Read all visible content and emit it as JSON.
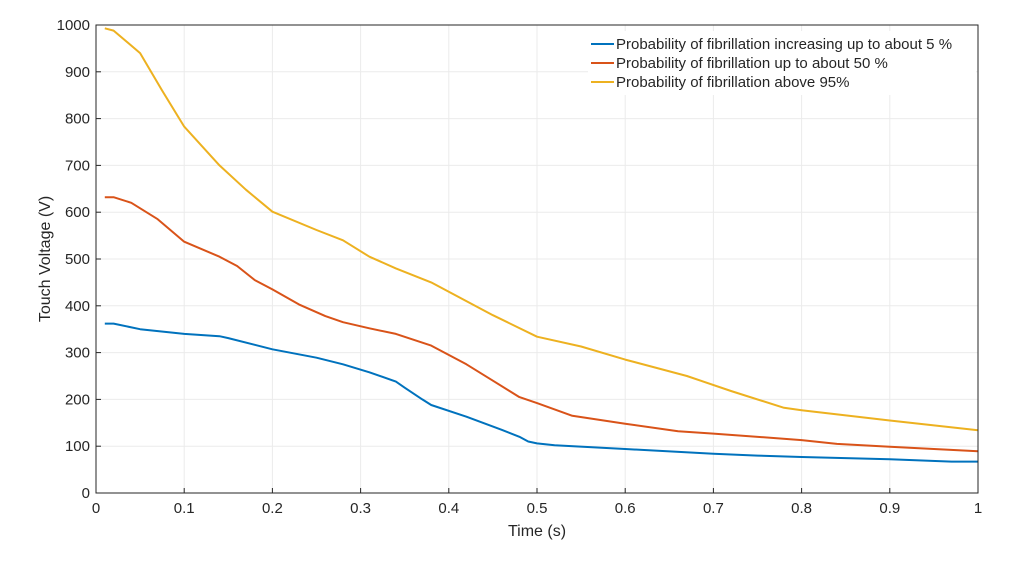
{
  "chart_data": {
    "type": "line",
    "title": "",
    "xlabel": "Time (s)",
    "ylabel": "Touch Voltage (V)",
    "xlim": [
      0,
      1
    ],
    "ylim": [
      0,
      1000
    ],
    "xticks": [
      "0",
      "0.1",
      "0.2",
      "0.3",
      "0.4",
      "0.5",
      "0.6",
      "0.7",
      "0.8",
      "0.9",
      "1"
    ],
    "yticks": [
      "0",
      "100",
      "200",
      "300",
      "400",
      "500",
      "600",
      "700",
      "800",
      "900",
      "1000"
    ],
    "grid": true,
    "legend_position": "top-right",
    "series": [
      {
        "name": "Probability of fibrillation increasing up to about 5 %",
        "color": "#0072BD",
        "x": [
          0.01,
          0.02,
          0.05,
          0.1,
          0.14,
          0.15,
          0.2,
          0.25,
          0.28,
          0.31,
          0.34,
          0.35,
          0.37,
          0.38,
          0.42,
          0.46,
          0.48,
          0.49,
          0.5,
          0.52,
          0.6,
          0.7,
          0.75,
          0.8,
          0.9,
          0.97,
          1
        ],
        "y": [
          362,
          362,
          350,
          340,
          335,
          331,
          307,
          289,
          275,
          258,
          238,
          225,
          200,
          188,
          163,
          135,
          120,
          110,
          106,
          102,
          94,
          84,
          80,
          77,
          72,
          67,
          67
        ]
      },
      {
        "name": "Probability of fibrillation up to about 50 %",
        "color": "#D95319",
        "x": [
          0.01,
          0.02,
          0.04,
          0.07,
          0.1,
          0.14,
          0.16,
          0.18,
          0.2,
          0.23,
          0.26,
          0.28,
          0.31,
          0.34,
          0.38,
          0.42,
          0.45,
          0.48,
          0.5,
          0.54,
          0.6,
          0.66,
          0.7,
          0.8,
          0.84,
          0.9,
          1
        ],
        "y": [
          632,
          632,
          620,
          585,
          537,
          505,
          485,
          455,
          435,
          403,
          378,
          365,
          352,
          340,
          315,
          275,
          240,
          205,
          192,
          165,
          148,
          132,
          127,
          113,
          105,
          99,
          89
        ]
      },
      {
        "name": "Probability of fibrillation above 95%",
        "color": "#EDB120",
        "x": [
          0.01,
          0.02,
          0.05,
          0.075,
          0.1,
          0.14,
          0.17,
          0.2,
          0.25,
          0.28,
          0.31,
          0.34,
          0.38,
          0.45,
          0.5,
          0.55,
          0.6,
          0.67,
          0.72,
          0.78,
          0.8,
          0.9,
          1
        ],
        "y": [
          993,
          988,
          940,
          860,
          783,
          700,
          648,
          601,
          562,
          540,
          505,
          480,
          450,
          380,
          334,
          313,
          285,
          250,
          218,
          182,
          177,
          155,
          134
        ]
      }
    ]
  }
}
